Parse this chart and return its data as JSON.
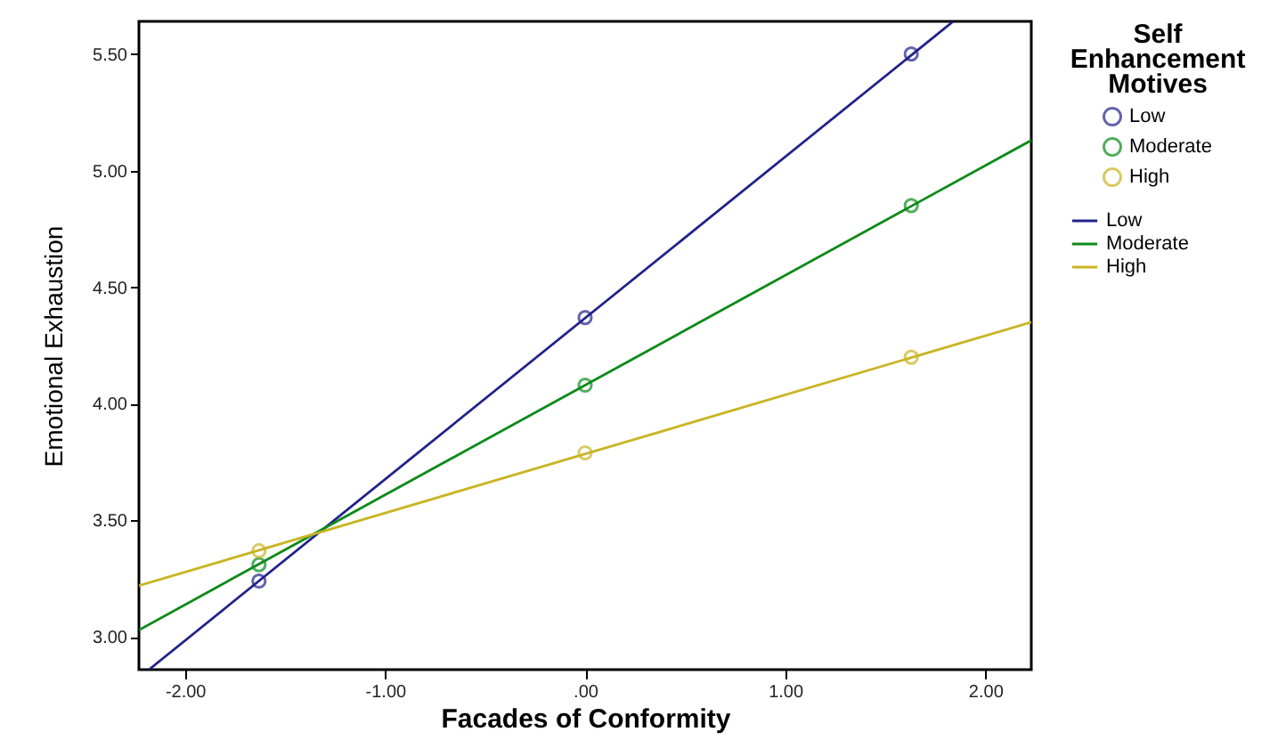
{
  "chart_data": {
    "type": "scatter",
    "xlabel": "Facades of Conformity",
    "ylabel": "Emotional Exhaustion",
    "legend_title": "Self Enhancement Motives",
    "legend": "top right",
    "grid": false,
    "marker": "circle",
    "xlim": [
      -2.23,
      2.23
    ],
    "xticks": [
      {
        "value": -2,
        "label": "-2.00"
      },
      {
        "value": -1,
        "label": "-1.00"
      },
      {
        "value": 0,
        "label": ".00"
      },
      {
        "value": 1,
        "label": "1.00"
      },
      {
        "value": 2,
        "label": "2.00"
      }
    ],
    "ylim": [
      2.86,
      5.64
    ],
    "yticks": [
      {
        "value": 3,
        "label": "3.00"
      },
      {
        "value": 3.5,
        "label": "3.50"
      },
      {
        "value": 4,
        "label": "4.00"
      },
      {
        "value": 4.5,
        "label": "4.50"
      },
      {
        "value": 5,
        "label": "5.00"
      },
      {
        "value": 5.5,
        "label": "5.50"
      }
    ],
    "series": [
      {
        "name": "Low",
        "color": "#22228a",
        "x": [
          -1.63,
          0,
          1.63
        ],
        "values": [
          3.24,
          4.37,
          5.5
        ]
      },
      {
        "name": "Moderate",
        "color": "#0d8a1a",
        "x": [
          -1.63,
          0,
          1.63
        ],
        "values": [
          3.31,
          4.08,
          4.85
        ]
      },
      {
        "name": "High",
        "color": "#c8b422",
        "x": [
          -1.63,
          0,
          1.63
        ],
        "values": [
          3.37,
          3.79,
          4.2
        ]
      },
      {
        "name": "Low",
        "type": "line",
        "marker": "none",
        "color": "#22228a",
        "x": [
          -2.18,
          1.84
        ],
        "values": [
          2.86,
          5.64
        ]
      },
      {
        "name": "Moderate",
        "type": "line",
        "marker": "none",
        "color": "#0d8a1a",
        "x": [
          -2.23,
          2.23
        ],
        "values": [
          3.03,
          5.13
        ]
      },
      {
        "name": "High",
        "type": "line",
        "marker": "none",
        "color": "#c8b422",
        "x": [
          -2.23,
          2.23
        ],
        "values": [
          3.22,
          4.35
        ]
      }
    ]
  }
}
